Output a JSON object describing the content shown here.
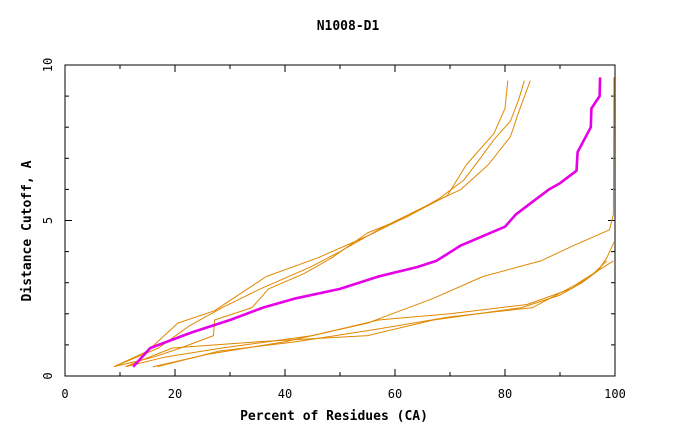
{
  "chart_data": {
    "type": "line",
    "title": "N1008-D1",
    "xlabel": "Percent of Residues (CA)",
    "ylabel": "Distance Cutoff, A",
    "xlim": [
      0,
      100
    ],
    "ylim": [
      0,
      10
    ],
    "x_ticks": [
      0,
      20,
      40,
      60,
      80,
      100
    ],
    "y_ticks": [
      0,
      5,
      10
    ],
    "x_tick_labels": [
      "0",
      "20",
      "40",
      "60",
      "80",
      "100"
    ],
    "y_tick_labels": [
      "0",
      "5",
      "10"
    ],
    "grid": false,
    "legend": "none",
    "colors": {
      "highlight": "#e600e6",
      "other": "#e08800"
    },
    "series": [
      {
        "highlight": false,
        "points": [
          [
            8.9,
            0.3
          ],
          [
            17,
            0.9
          ],
          [
            22.5,
            1.6
          ],
          [
            28.6,
            2.2
          ],
          [
            35.5,
            2.8
          ],
          [
            44.6,
            3.5
          ],
          [
            50,
            4.0
          ],
          [
            58,
            4.8
          ],
          [
            66,
            5.5
          ],
          [
            72,
            6.0
          ],
          [
            77,
            6.8
          ],
          [
            81,
            7.7
          ],
          [
            82.5,
            8.5
          ],
          [
            84.6,
            9.5
          ]
        ]
      },
      {
        "highlight": false,
        "points": [
          [
            8.9,
            0.3
          ],
          [
            15,
            0.8
          ],
          [
            20.5,
            1.7
          ],
          [
            27.2,
            2.1
          ],
          [
            36.6,
            3.2
          ],
          [
            46,
            3.8
          ],
          [
            55,
            4.5
          ],
          [
            63,
            5.2
          ],
          [
            69.5,
            5.8
          ],
          [
            73,
            6.8
          ],
          [
            78,
            7.8
          ],
          [
            80,
            8.6
          ],
          [
            80.5,
            9.5
          ]
        ]
      },
      {
        "highlight": false,
        "points": [
          [
            8.9,
            0.3
          ],
          [
            16,
            0.6
          ],
          [
            21,
            0.9
          ],
          [
            27,
            1.3
          ],
          [
            27.2,
            1.8
          ],
          [
            34,
            2.2
          ],
          [
            37,
            2.8
          ],
          [
            43.5,
            3.3
          ],
          [
            48.5,
            3.8
          ],
          [
            55,
            4.6
          ],
          [
            62,
            5.1
          ],
          [
            68,
            5.7
          ],
          [
            72.5,
            6.3
          ],
          [
            75.5,
            7.0
          ],
          [
            78,
            7.6
          ],
          [
            81,
            8.2
          ],
          [
            82.5,
            8.9
          ],
          [
            83.5,
            9.5
          ]
        ]
      },
      {
        "highlight": true,
        "points": [
          [
            12.4,
            0.3
          ],
          [
            15.5,
            0.9
          ],
          [
            23,
            1.4
          ],
          [
            30,
            1.8
          ],
          [
            36,
            2.2
          ],
          [
            42,
            2.5
          ],
          [
            50,
            2.8
          ],
          [
            57,
            3.2
          ],
          [
            64,
            3.5
          ],
          [
            67.5,
            3.7
          ],
          [
            72,
            4.2
          ],
          [
            80,
            4.8
          ],
          [
            82,
            5.2
          ],
          [
            85,
            5.6
          ],
          [
            88,
            6.0
          ],
          [
            90,
            6.2
          ],
          [
            93,
            6.6
          ],
          [
            93.2,
            7.2
          ],
          [
            95.6,
            8.0
          ],
          [
            95.7,
            8.6
          ],
          [
            97.2,
            9.0
          ],
          [
            97.3,
            9.6
          ]
        ]
      },
      {
        "highlight": false,
        "points": [
          [
            16,
            0.3
          ],
          [
            26,
            0.7
          ],
          [
            40,
            1.1
          ],
          [
            55,
            1.7
          ],
          [
            67,
            2.5
          ],
          [
            76,
            3.2
          ],
          [
            86.5,
            3.7
          ],
          [
            92.5,
            4.2
          ],
          [
            99,
            4.7
          ],
          [
            99.7,
            5.2
          ],
          [
            99.8,
            9.6
          ]
        ]
      },
      {
        "highlight": false,
        "points": [
          [
            11,
            0.3
          ],
          [
            19.5,
            0.9
          ],
          [
            35,
            1.1
          ],
          [
            55,
            1.3
          ],
          [
            67,
            1.8
          ],
          [
            83,
            2.2
          ],
          [
            90,
            2.6
          ],
          [
            94,
            3.0
          ],
          [
            97,
            3.4
          ],
          [
            98.5,
            3.8
          ],
          [
            99.8,
            4.3
          ]
        ]
      },
      {
        "highlight": false,
        "points": [
          [
            11,
            0.3
          ],
          [
            18,
            0.6
          ],
          [
            28.5,
            0.9
          ],
          [
            45,
            1.3
          ],
          [
            57,
            1.8
          ],
          [
            70,
            2.0
          ],
          [
            84,
            2.3
          ],
          [
            92,
            2.8
          ],
          [
            95.5,
            3.2
          ],
          [
            98.5,
            3.7
          ]
        ]
      },
      {
        "highlight": false,
        "points": [
          [
            16.8,
            0.3
          ],
          [
            28,
            0.8
          ],
          [
            42,
            1.1
          ],
          [
            56.5,
            1.5
          ],
          [
            70,
            1.9
          ],
          [
            85,
            2.2
          ],
          [
            92.5,
            2.9
          ],
          [
            99.7,
            3.7
          ]
        ]
      }
    ]
  }
}
